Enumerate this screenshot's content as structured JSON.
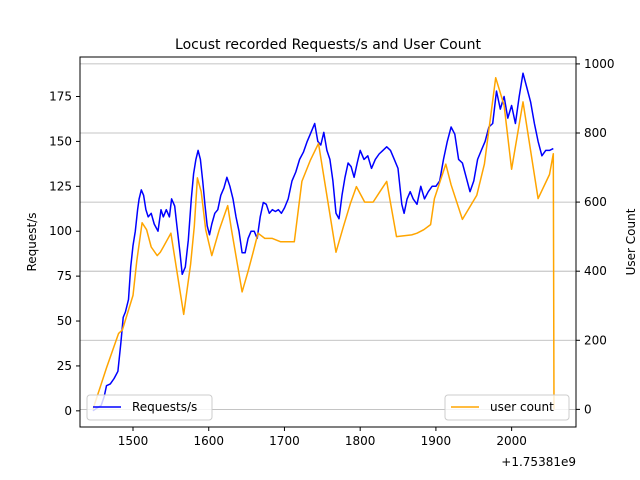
{
  "chart_data": {
    "type": "line",
    "title": "Locust recorded Requests/s and User Count",
    "xlabel": "",
    "ylabel_left": "Request/s",
    "ylabel_right": "User Count",
    "x_offset_text": "+1.75381e9",
    "xlim": [
      1430,
      2085
    ],
    "ylim_left": [
      -9,
      197
    ],
    "ylim_right": [
      -51,
      1020
    ],
    "x_ticks": [
      1500,
      1600,
      1700,
      1800,
      1900,
      2000
    ],
    "y_ticks_left": [
      0,
      25,
      50,
      75,
      100,
      125,
      150,
      175
    ],
    "y_ticks_right": [
      0,
      200,
      400,
      600,
      800,
      1000
    ],
    "grid": "horizontal-right-axis",
    "legend_left": "lower-left",
    "legend_right": "lower-right",
    "colors": {
      "requests": "#0000ff",
      "users": "#ffa500",
      "grid": "#b0b0b0"
    },
    "series": [
      {
        "name": "Requests/s",
        "axis": "left",
        "color": "#0000ff",
        "x": [
          1447,
          1458,
          1462,
          1465,
          1470,
          1475,
          1480,
          1484,
          1487,
          1490,
          1494,
          1497,
          1500,
          1503,
          1506,
          1508,
          1511,
          1514,
          1517,
          1520,
          1524,
          1528,
          1533,
          1537,
          1540,
          1544,
          1548,
          1551,
          1555,
          1558,
          1562,
          1565,
          1569,
          1573,
          1577,
          1580,
          1583,
          1586,
          1589,
          1592,
          1595,
          1598,
          1601,
          1604,
          1608,
          1612,
          1616,
          1620,
          1624,
          1628,
          1632,
          1636,
          1640,
          1644,
          1648,
          1652,
          1656,
          1660,
          1664,
          1668,
          1672,
          1676,
          1680,
          1684,
          1688,
          1692,
          1696,
          1700,
          1705,
          1710,
          1715,
          1720,
          1725,
          1730,
          1735,
          1740,
          1744,
          1748,
          1752,
          1756,
          1760,
          1764,
          1768,
          1772,
          1776,
          1780,
          1784,
          1788,
          1792,
          1796,
          1800,
          1805,
          1810,
          1815,
          1820,
          1825,
          1830,
          1835,
          1840,
          1845,
          1850,
          1855,
          1858,
          1862,
          1866,
          1870,
          1875,
          1880,
          1885,
          1890,
          1895,
          1900,
          1905,
          1910,
          1915,
          1920,
          1925,
          1930,
          1935,
          1940,
          1945,
          1950,
          1955,
          1960,
          1965,
          1970,
          1975,
          1980,
          1985,
          1990,
          1995,
          2000,
          2005,
          2010,
          2015,
          2020,
          2025,
          2030,
          2035,
          2040,
          2045,
          2050,
          2055
        ],
        "values": [
          0,
          3,
          8,
          14,
          15,
          18,
          22,
          38,
          52,
          55,
          62,
          80,
          92,
          100,
          112,
          118,
          123,
          120,
          112,
          108,
          110,
          104,
          100,
          112,
          108,
          112,
          108,
          118,
          114,
          103,
          88,
          76,
          80,
          95,
          118,
          132,
          140,
          145,
          140,
          128,
          115,
          103,
          98,
          104,
          110,
          112,
          120,
          124,
          130,
          125,
          118,
          108,
          100,
          88,
          88,
          96,
          100,
          100,
          96,
          108,
          116,
          115,
          110,
          112,
          111,
          112,
          110,
          113,
          118,
          128,
          133,
          140,
          144,
          150,
          155,
          160,
          150,
          148,
          155,
          145,
          140,
          128,
          110,
          107,
          120,
          130,
          138,
          136,
          130,
          138,
          145,
          140,
          142,
          135,
          140,
          143,
          145,
          147,
          145,
          140,
          135,
          115,
          110,
          118,
          122,
          118,
          115,
          125,
          118,
          122,
          125,
          125,
          128,
          140,
          150,
          158,
          154,
          140,
          138,
          130,
          122,
          128,
          140,
          145,
          150,
          158,
          160,
          178,
          168,
          175,
          163,
          170,
          160,
          175,
          188,
          180,
          172,
          160,
          150,
          142,
          145,
          145,
          146
        ]
      },
      {
        "name": "user count",
        "axis": "right",
        "color": "#ffa500",
        "x": [
          1447,
          1465,
          1481,
          1486,
          1500,
          1505,
          1512,
          1518,
          1524,
          1532,
          1536,
          1540,
          1550,
          1567,
          1576,
          1581,
          1585,
          1590,
          1596,
          1604,
          1614,
          1625,
          1630,
          1644,
          1652,
          1658,
          1665,
          1674,
          1684,
          1695,
          1713,
          1723,
          1734,
          1745,
          1768,
          1778,
          1787,
          1795,
          1806,
          1817,
          1826,
          1835,
          1848,
          1868,
          1875,
          1884,
          1893,
          1898,
          1913,
          1920,
          1935,
          1954,
          1964,
          1979,
          1990,
          2000,
          2015,
          2035,
          2050,
          2055,
          2056
        ],
        "values": [
          0,
          120,
          220,
          230,
          330,
          430,
          540,
          520,
          470,
          445,
          455,
          470,
          510,
          275,
          420,
          530,
          670,
          630,
          520,
          445,
          520,
          590,
          520,
          340,
          400,
          450,
          510,
          495,
          495,
          485,
          485,
          660,
          720,
          770,
          455,
          530,
          595,
          645,
          600,
          600,
          630,
          660,
          500,
          505,
          510,
          520,
          535,
          610,
          710,
          650,
          550,
          620,
          710,
          960,
          880,
          695,
          890,
          610,
          680,
          740,
          0
        ]
      }
    ],
    "legend_entries": [
      {
        "label": "Requests/s",
        "color": "#0000ff"
      },
      {
        "label": "user count",
        "color": "#ffa500"
      }
    ]
  }
}
